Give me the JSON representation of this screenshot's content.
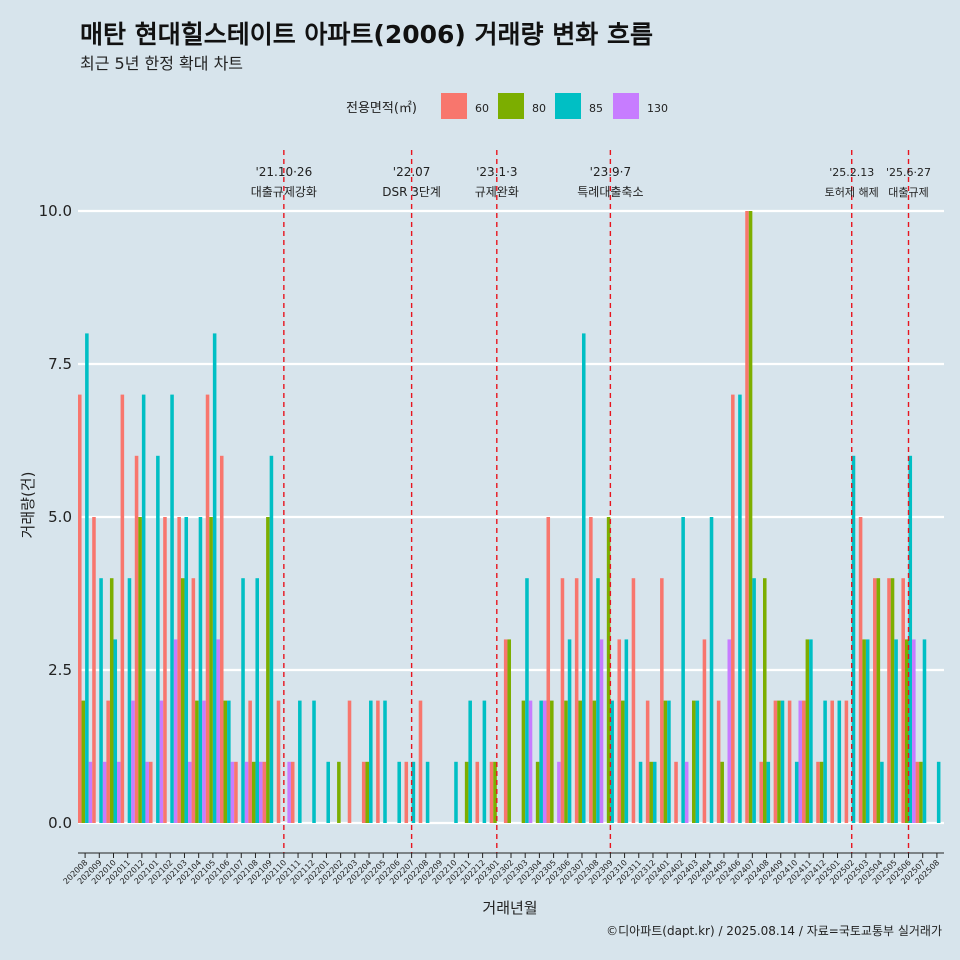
{
  "chart_data": {
    "type": "bar",
    "title": "매탄 현대힐스테이트 아파트(2006) 거래량 변화 흐름",
    "subtitle": "최근 5년 한정 확대 차트",
    "xlabel": "거래년월",
    "ylabel": "거래량(건)",
    "ylim": [
      0,
      10
    ],
    "yticks": [
      0,
      2.5,
      5,
      7.5,
      10
    ],
    "ytick_labels": [
      "0.0",
      "2.5",
      "5.0",
      "7.5",
      "10.0"
    ],
    "legend_title": "전용면적(㎡)",
    "legend_position": "top",
    "caption": "©디아파트(dapt.kr) / 2025.08.14 / 자료=국토교통부 실거래가",
    "colors": {
      "background": "#d7e4ec",
      "grid": "#ffffff",
      "vline": "#e8141e"
    },
    "series": [
      {
        "name": "60",
        "color": "#f8766d"
      },
      {
        "name": "80",
        "color": "#7cae00"
      },
      {
        "name": "85",
        "color": "#00bfc4"
      },
      {
        "name": "130",
        "color": "#c77cff"
      }
    ],
    "months": [
      {
        "label": "202008",
        "v": [
          7,
          2,
          8,
          1
        ]
      },
      {
        "label": "202009",
        "v": [
          5,
          0,
          4,
          1
        ]
      },
      {
        "label": "202010",
        "v": [
          2,
          4,
          3,
          1
        ]
      },
      {
        "label": "202011",
        "v": [
          7,
          0,
          4,
          2
        ]
      },
      {
        "label": "202012",
        "v": [
          6,
          5,
          7,
          1
        ]
      },
      {
        "label": "202101",
        "v": [
          1,
          0,
          6,
          2
        ]
      },
      {
        "label": "202102",
        "v": [
          5,
          0,
          7,
          3
        ]
      },
      {
        "label": "202103",
        "v": [
          5,
          4,
          5,
          1
        ]
      },
      {
        "label": "202104",
        "v": [
          4,
          2,
          5,
          2
        ]
      },
      {
        "label": "202105",
        "v": [
          7,
          5,
          8,
          3
        ]
      },
      {
        "label": "202106",
        "v": [
          6,
          2,
          2,
          1
        ]
      },
      {
        "label": "202107",
        "v": [
          1,
          0,
          4,
          1
        ]
      },
      {
        "label": "202108",
        "v": [
          2,
          1,
          4,
          1
        ]
      },
      {
        "label": "202109",
        "v": [
          1,
          5,
          6,
          0
        ]
      },
      {
        "label": "202110",
        "v": [
          2,
          0,
          0,
          1
        ]
      },
      {
        "label": "202111",
        "v": [
          1,
          0,
          2,
          0
        ]
      },
      {
        "label": "202112",
        "v": [
          0,
          0,
          2,
          0
        ]
      },
      {
        "label": "202201",
        "v": [
          0,
          0,
          1,
          0
        ]
      },
      {
        "label": "202202",
        "v": [
          0,
          1,
          0,
          0
        ]
      },
      {
        "label": "202203",
        "v": [
          2,
          0,
          0,
          0
        ]
      },
      {
        "label": "202204",
        "v": [
          1,
          1,
          2,
          0
        ]
      },
      {
        "label": "202205",
        "v": [
          2,
          0,
          2,
          0
        ]
      },
      {
        "label": "202206",
        "v": [
          0,
          0,
          1,
          0
        ]
      },
      {
        "label": "202207",
        "v": [
          1,
          0,
          1,
          0
        ]
      },
      {
        "label": "202208",
        "v": [
          2,
          0,
          1,
          0
        ]
      },
      {
        "label": "202209",
        "v": [
          0,
          0,
          0,
          0
        ]
      },
      {
        "label": "202210",
        "v": [
          0,
          0,
          1,
          0
        ]
      },
      {
        "label": "202211",
        "v": [
          0,
          1,
          2,
          0
        ]
      },
      {
        "label": "202212",
        "v": [
          1,
          0,
          2,
          0
        ]
      },
      {
        "label": "202301",
        "v": [
          1,
          1,
          0,
          0
        ]
      },
      {
        "label": "202302",
        "v": [
          3,
          3,
          0,
          0
        ]
      },
      {
        "label": "202303",
        "v": [
          0,
          2,
          4,
          2
        ]
      },
      {
        "label": "202304",
        "v": [
          0,
          1,
          2,
          2
        ]
      },
      {
        "label": "202305",
        "v": [
          5,
          2,
          0,
          1
        ]
      },
      {
        "label": "202306",
        "v": [
          4,
          2,
          3,
          0
        ]
      },
      {
        "label": "202307",
        "v": [
          4,
          2,
          8,
          0
        ]
      },
      {
        "label": "202308",
        "v": [
          5,
          2,
          4,
          3
        ]
      },
      {
        "label": "202309",
        "v": [
          0,
          5,
          2,
          0
        ]
      },
      {
        "label": "202310",
        "v": [
          3,
          2,
          3,
          0
        ]
      },
      {
        "label": "202311",
        "v": [
          4,
          0,
          1,
          0
        ]
      },
      {
        "label": "202312",
        "v": [
          2,
          1,
          1,
          0
        ]
      },
      {
        "label": "202401",
        "v": [
          4,
          2,
          2,
          0
        ]
      },
      {
        "label": "202402",
        "v": [
          1,
          0,
          5,
          1
        ]
      },
      {
        "label": "202403",
        "v": [
          0,
          2,
          2,
          0
        ]
      },
      {
        "label": "202404",
        "v": [
          3,
          0,
          5,
          0
        ]
      },
      {
        "label": "202405",
        "v": [
          2,
          1,
          0,
          3
        ]
      },
      {
        "label": "202406",
        "v": [
          7,
          0,
          7,
          0
        ]
      },
      {
        "label": "202407",
        "v": [
          10,
          10,
          4,
          0
        ]
      },
      {
        "label": "202408",
        "v": [
          1,
          4,
          1,
          0
        ]
      },
      {
        "label": "202409",
        "v": [
          2,
          2,
          2,
          0
        ]
      },
      {
        "label": "202410",
        "v": [
          2,
          0,
          1,
          2
        ]
      },
      {
        "label": "202411",
        "v": [
          2,
          3,
          3,
          0
        ]
      },
      {
        "label": "202412",
        "v": [
          1,
          1,
          2,
          0
        ]
      },
      {
        "label": "202501",
        "v": [
          2,
          0,
          2,
          0
        ]
      },
      {
        "label": "202502",
        "v": [
          2,
          0,
          6,
          0
        ]
      },
      {
        "label": "202503",
        "v": [
          5,
          3,
          3,
          0
        ]
      },
      {
        "label": "202504",
        "v": [
          4,
          4,
          1,
          0
        ]
      },
      {
        "label": "202505",
        "v": [
          4,
          4,
          3,
          0
        ]
      },
      {
        "label": "202506",
        "v": [
          4,
          3,
          6,
          3
        ]
      },
      {
        "label": "202507",
        "v": [
          1,
          1,
          3,
          0
        ]
      },
      {
        "label": "202508",
        "v": [
          0,
          0,
          1,
          0
        ]
      }
    ],
    "annotations": [
      {
        "month": "202110",
        "date": "'21.10·26",
        "label": "대출규제강화"
      },
      {
        "month": "202207",
        "date": "'22.07",
        "label": "DSR 3단계"
      },
      {
        "month": "202301",
        "date": "'23.1·3",
        "label": "규제완화"
      },
      {
        "month": "202309",
        "date": "'23.9·7",
        "label": "특례대출축소"
      },
      {
        "month": "202502",
        "date": "'25.2.13",
        "label": "토허제 해제"
      },
      {
        "month": "202506",
        "date": "'25.6·27",
        "label": "대출규제"
      }
    ]
  }
}
